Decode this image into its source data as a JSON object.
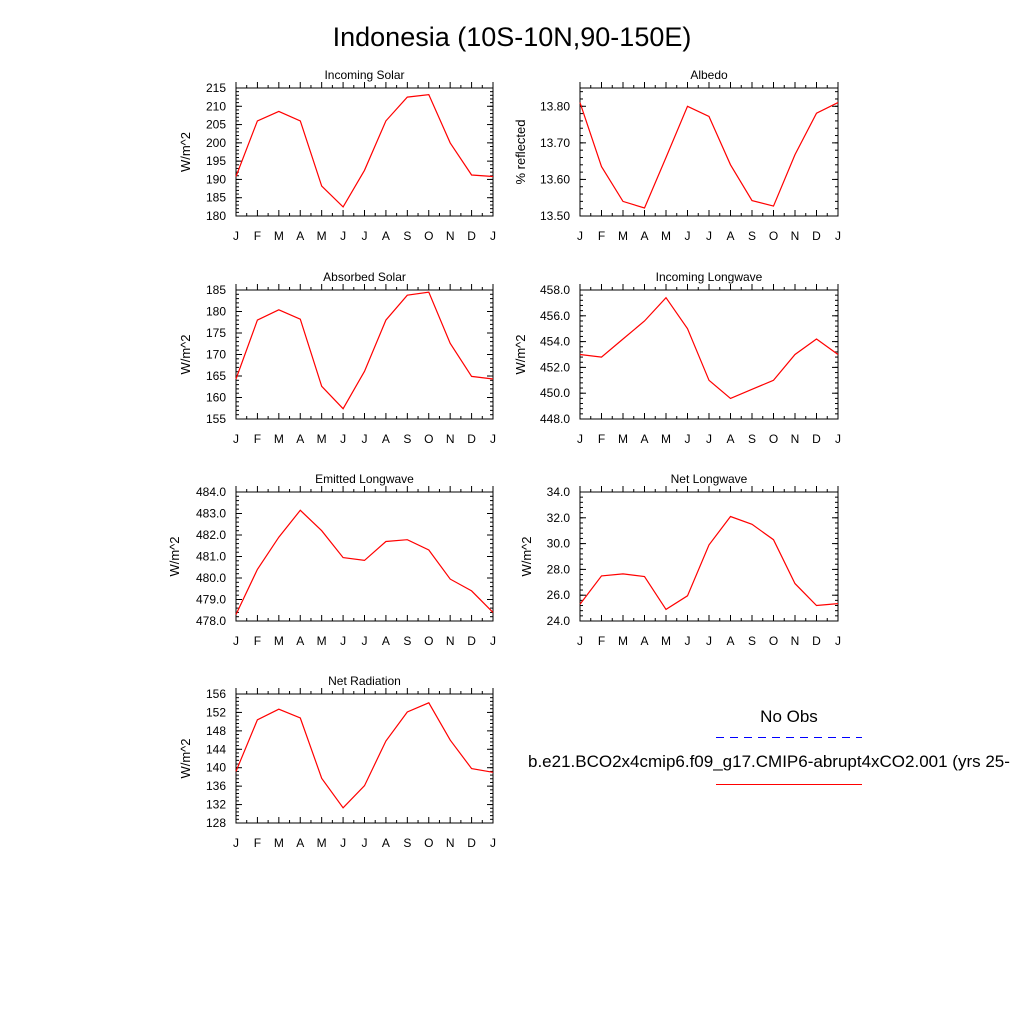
{
  "figure": {
    "title": "Indonesia (10S-10N,90-150E)",
    "line_color": "#ff0000",
    "obs_color": "#0000ff",
    "axis_color": "#000000"
  },
  "legend": {
    "obs_label": "No Obs",
    "model_label": "b.e21.BCO2x4cmip6.f09_g17.CMIP6-abrupt4xCO2.001 (yrs 25-"
  },
  "chart_data": [
    {
      "type": "line",
      "title": "Incoming Solar",
      "ylabel": "W/m^2",
      "categories": [
        "J",
        "F",
        "M",
        "A",
        "M",
        "J",
        "J",
        "A",
        "S",
        "O",
        "N",
        "D",
        "J"
      ],
      "ylim": [
        180,
        215
      ],
      "yticks": [
        "215",
        "210",
        "205",
        "200",
        "195",
        "190",
        "185",
        "180"
      ],
      "ytick_values": [
        215,
        210,
        205,
        200,
        195,
        190,
        185,
        180
      ],
      "series": [
        {
          "values": [
            190.8,
            206.0,
            208.6,
            206.0,
            188.2,
            182.5,
            192.5,
            206.0,
            212.5,
            213.2,
            200.0,
            191.2,
            190.8
          ]
        }
      ]
    },
    {
      "type": "line",
      "title": "Albedo",
      "ylabel": "% reflected",
      "categories": [
        "J",
        "F",
        "M",
        "A",
        "M",
        "J",
        "J",
        "A",
        "S",
        "O",
        "N",
        "D",
        "J"
      ],
      "ylim": [
        13.5,
        13.85
      ],
      "yticks": [
        "13.80",
        "13.70",
        "13.60",
        "13.50"
      ],
      "ytick_values": [
        13.8,
        13.7,
        13.6,
        13.5
      ],
      "series": [
        {
          "values": [
            13.81,
            13.635,
            13.54,
            13.522,
            13.66,
            13.8,
            13.772,
            13.64,
            13.542,
            13.527,
            13.668,
            13.781,
            13.81
          ]
        }
      ]
    },
    {
      "type": "line",
      "title": "Absorbed Solar",
      "ylabel": "W/m^2",
      "categories": [
        "J",
        "F",
        "M",
        "A",
        "M",
        "J",
        "J",
        "A",
        "S",
        "O",
        "N",
        "D",
        "J"
      ],
      "ylim": [
        155,
        185
      ],
      "yticks": [
        "185",
        "180",
        "175",
        "170",
        "165",
        "160",
        "155"
      ],
      "ytick_values": [
        185,
        180,
        175,
        170,
        165,
        160,
        155
      ],
      "series": [
        {
          "values": [
            164.3,
            178.0,
            180.4,
            178.2,
            162.6,
            157.4,
            166.1,
            178.0,
            183.8,
            184.5,
            172.6,
            164.9,
            164.3
          ]
        }
      ]
    },
    {
      "type": "line",
      "title": "Incoming Longwave",
      "ylabel": "W/m^2",
      "categories": [
        "J",
        "F",
        "M",
        "A",
        "M",
        "J",
        "J",
        "A",
        "S",
        "O",
        "N",
        "D",
        "J"
      ],
      "ylim": [
        448,
        458
      ],
      "yticks": [
        "458.0",
        "456.0",
        "454.0",
        "452.0",
        "450.0",
        "448.0"
      ],
      "ytick_values": [
        458,
        456,
        454,
        452,
        450,
        448
      ],
      "series": [
        {
          "values": [
            453.0,
            452.8,
            454.2,
            455.6,
            457.4,
            455.0,
            451.0,
            449.6,
            450.3,
            451.0,
            453.0,
            454.2,
            453.0
          ]
        }
      ]
    },
    {
      "type": "line",
      "title": "Emitted Longwave",
      "ylabel": "W/m^2",
      "categories": [
        "J",
        "F",
        "M",
        "A",
        "M",
        "J",
        "J",
        "A",
        "S",
        "O",
        "N",
        "D",
        "J"
      ],
      "ylim": [
        478,
        484
      ],
      "yticks": [
        "484.0",
        "483.0",
        "482.0",
        "481.0",
        "480.0",
        "479.0",
        "478.0"
      ],
      "ytick_values": [
        484,
        483,
        482,
        481,
        480,
        479,
        478
      ],
      "series": [
        {
          "values": [
            478.3,
            480.4,
            481.9,
            483.15,
            482.2,
            480.95,
            480.82,
            481.7,
            481.78,
            481.3,
            479.95,
            479.4,
            478.4
          ]
        }
      ]
    },
    {
      "type": "line",
      "title": "Net Longwave",
      "ylabel": "W/m^2",
      "categories": [
        "J",
        "F",
        "M",
        "A",
        "M",
        "J",
        "J",
        "A",
        "S",
        "O",
        "N",
        "D",
        "J"
      ],
      "ylim": [
        24,
        34
      ],
      "yticks": [
        "34.0",
        "32.0",
        "30.0",
        "28.0",
        "26.0",
        "24.0"
      ],
      "ytick_values": [
        34,
        32,
        30,
        28,
        26,
        24
      ],
      "series": [
        {
          "values": [
            25.3,
            27.5,
            27.65,
            27.45,
            24.9,
            25.95,
            29.9,
            32.1,
            31.5,
            30.3,
            26.9,
            25.2,
            25.35
          ]
        }
      ]
    },
    {
      "type": "line",
      "title": "Net Radiation",
      "ylabel": "W/m^2",
      "categories": [
        "J",
        "F",
        "M",
        "A",
        "M",
        "J",
        "J",
        "A",
        "S",
        "O",
        "N",
        "D",
        "J"
      ],
      "ylim": [
        128,
        156
      ],
      "yticks": [
        "156",
        "152",
        "148",
        "144",
        "140",
        "136",
        "132",
        "128"
      ],
      "ytick_values": [
        156,
        152,
        148,
        144,
        140,
        136,
        132,
        128
      ],
      "series": [
        {
          "values": [
            139.2,
            150.4,
            152.7,
            150.8,
            137.7,
            131.3,
            136.1,
            145.8,
            152.1,
            154.1,
            146.0,
            139.8,
            139.0
          ]
        }
      ]
    }
  ]
}
